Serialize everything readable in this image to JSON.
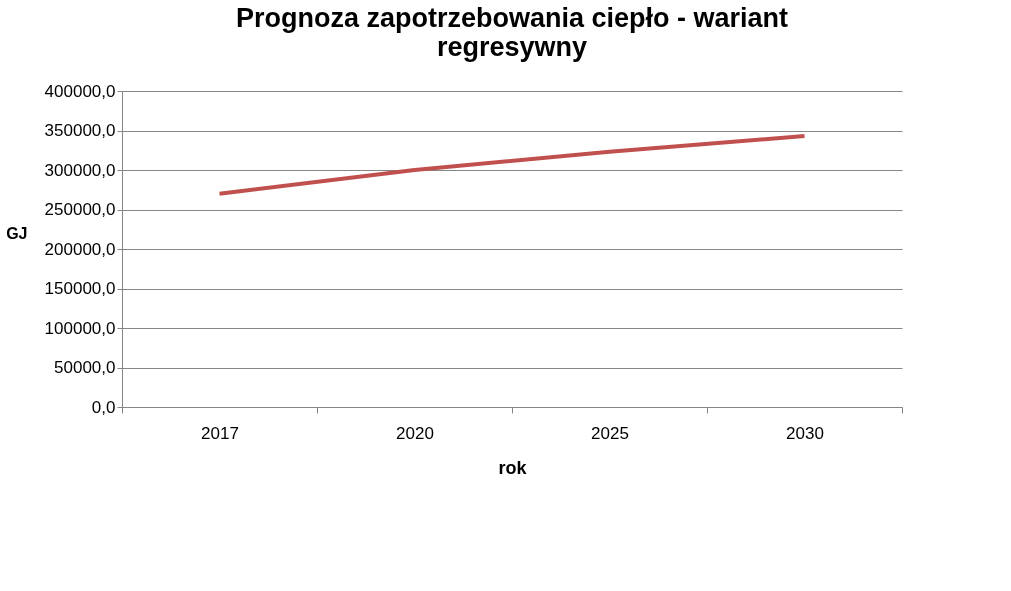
{
  "chart_data": {
    "type": "line",
    "title": [
      "Prognoza zapotrzebowania ciepło - wariant",
      "regresywny"
    ],
    "xlabel": "rok",
    "ylabel": "GJ",
    "categories": [
      "2017",
      "2020",
      "2025",
      "2030"
    ],
    "series": [
      {
        "color": "#c0504d",
        "values": [
          270000,
          300000,
          323000,
          343000
        ]
      }
    ],
    "ylim": [
      0,
      400000
    ],
    "yticks": [
      {
        "value": 0,
        "label": "0,0"
      },
      {
        "value": 50000,
        "label": "50000,0"
      },
      {
        "value": 100000,
        "label": "100000,0"
      },
      {
        "value": 150000,
        "label": "150000,0"
      },
      {
        "value": 200000,
        "label": "200000,0"
      },
      {
        "value": 250000,
        "label": "250000,0"
      },
      {
        "value": 300000,
        "label": "300000,0"
      },
      {
        "value": 350000,
        "label": "350000,0"
      },
      {
        "value": 400000,
        "label": "400000,0"
      }
    ],
    "grid": "y",
    "legend": false,
    "marker": "none",
    "line_style": "solid"
  }
}
